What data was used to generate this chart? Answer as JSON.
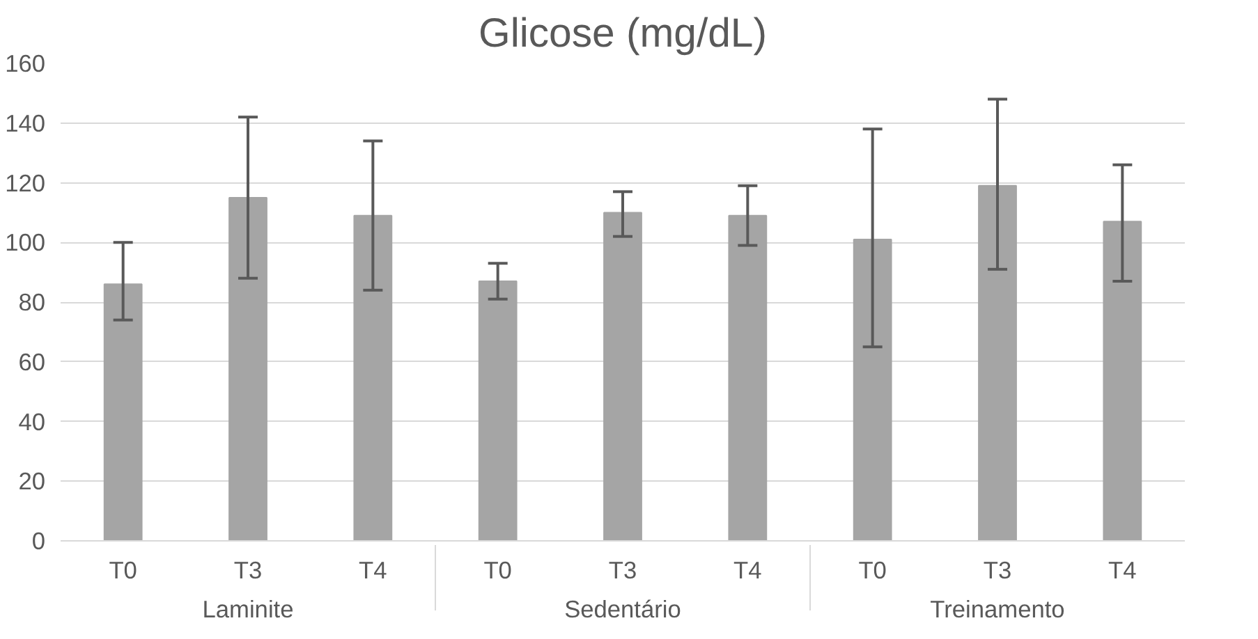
{
  "chart_data": {
    "type": "bar",
    "title": "Glicose (mg/dL)",
    "categories": [
      "T0",
      "T3",
      "T4",
      "T0",
      "T3",
      "T4",
      "T0",
      "T3",
      "T4"
    ],
    "annotations": [
      "Laminite",
      "Sedentário",
      "Treinamento"
    ],
    "values": [
      86,
      115,
      109,
      87,
      110,
      109,
      101,
      119,
      107
    ],
    "errors": [
      [
        74,
        100
      ],
      [
        88,
        142
      ],
      [
        84,
        134
      ],
      [
        81,
        93
      ],
      [
        102,
        117
      ],
      [
        99,
        119
      ],
      [
        65,
        138
      ],
      [
        91,
        148
      ],
      [
        87,
        126
      ]
    ],
    "color": "#a5a5a5",
    "ylim": [
      0,
      160
    ],
    "yticks": [
      0,
      20,
      40,
      60,
      80,
      100,
      120,
      140,
      160
    ],
    "grid": "y"
  }
}
